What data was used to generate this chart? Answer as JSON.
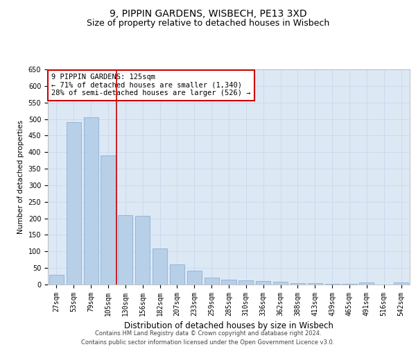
{
  "title1": "9, PIPPIN GARDENS, WISBECH, PE13 3XD",
  "title2": "Size of property relative to detached houses in Wisbech",
  "xlabel": "Distribution of detached houses by size in Wisbech",
  "ylabel": "Number of detached properties",
  "categories": [
    "27sqm",
    "53sqm",
    "79sqm",
    "105sqm",
    "130sqm",
    "156sqm",
    "182sqm",
    "207sqm",
    "233sqm",
    "259sqm",
    "285sqm",
    "310sqm",
    "336sqm",
    "362sqm",
    "388sqm",
    "413sqm",
    "439sqm",
    "465sqm",
    "491sqm",
    "516sqm",
    "542sqm"
  ],
  "values": [
    30,
    490,
    505,
    390,
    210,
    208,
    108,
    60,
    42,
    22,
    15,
    12,
    10,
    8,
    5,
    5,
    3,
    2,
    6,
    1,
    7
  ],
  "bar_color": "#b8cfe8",
  "bar_edge_color": "#7aaad0",
  "grid_color": "#c8d8ec",
  "background_color": "#dde8f5",
  "vline_color": "#cc0000",
  "annotation_text": "9 PIPPIN GARDENS: 125sqm\n← 71% of detached houses are smaller (1,340)\n28% of semi-detached houses are larger (526) →",
  "annotation_box_color": "#cc0000",
  "ylim": [
    0,
    650
  ],
  "yticks": [
    0,
    50,
    100,
    150,
    200,
    250,
    300,
    350,
    400,
    450,
    500,
    550,
    600,
    650
  ],
  "footer": "Contains HM Land Registry data © Crown copyright and database right 2024.\nContains public sector information licensed under the Open Government Licence v3.0.",
  "title1_fontsize": 10,
  "title2_fontsize": 9,
  "xlabel_fontsize": 8.5,
  "ylabel_fontsize": 7.5,
  "tick_fontsize": 7,
  "footer_fontsize": 6,
  "annot_fontsize": 7.5
}
